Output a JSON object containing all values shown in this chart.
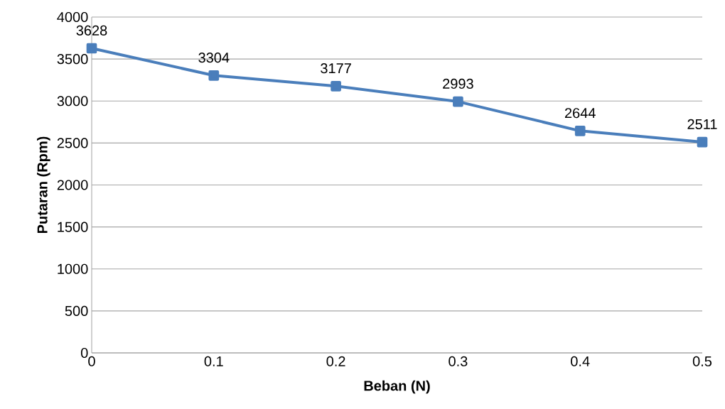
{
  "chart_data": {
    "type": "line",
    "xlabel": "Beban (N)",
    "ylabel": "Putaran (Rpm)",
    "x": [
      0,
      0.1,
      0.2,
      0.3,
      0.4,
      0.5
    ],
    "values": [
      3628,
      3304,
      3177,
      2993,
      2644,
      2511
    ],
    "color": "#4a7ebb",
    "marker": "square",
    "data_labels": true,
    "grid": "y",
    "xlim": [
      0,
      0.5
    ],
    "xticks": [
      0,
      0.1,
      0.2,
      0.3,
      0.4,
      0.5
    ],
    "ylim": [
      0,
      4000
    ],
    "yticks": [
      0,
      500,
      1000,
      1500,
      2000,
      2500,
      3000,
      3500,
      4000
    ]
  }
}
